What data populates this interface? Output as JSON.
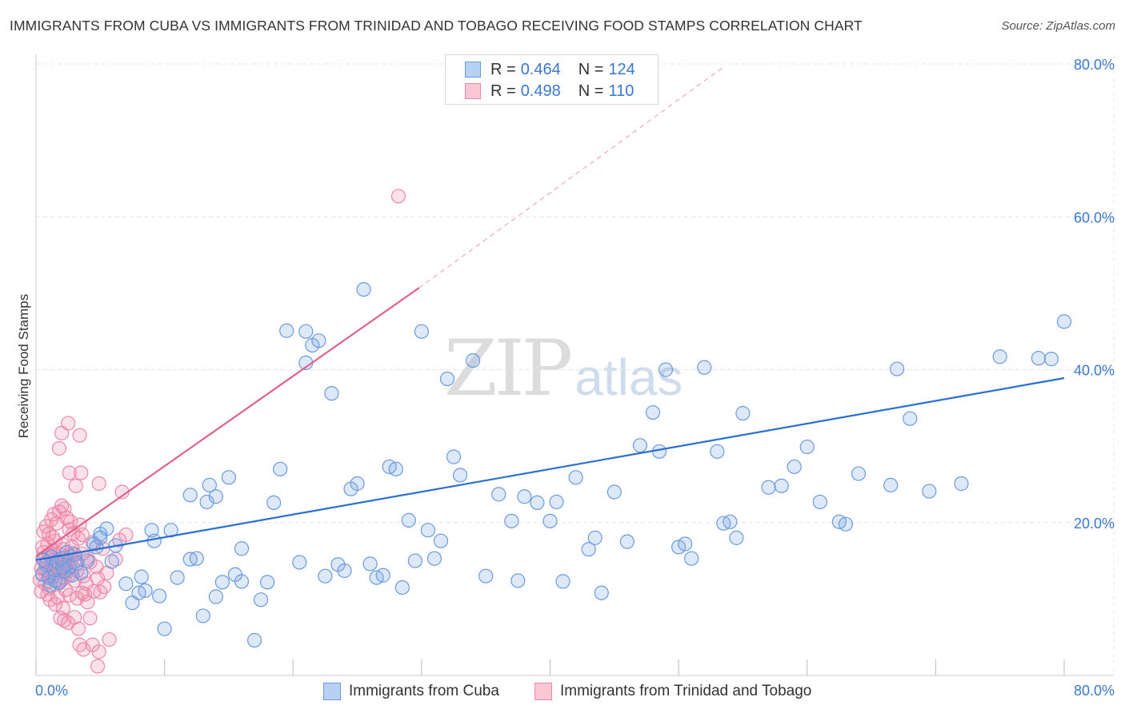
{
  "title": "IMMIGRANTS FROM CUBA VS IMMIGRANTS FROM TRINIDAD AND TOBAGO RECEIVING FOOD STAMPS CORRELATION CHART",
  "source": "Source: ZipAtlas.com",
  "watermark": {
    "zip": "ZIP",
    "atlas": "atlas"
  },
  "legend": {
    "rows": [
      {
        "r_label": "R =",
        "r_value": "0.464",
        "n_label": "N =",
        "n_value": "124"
      },
      {
        "r_label": "R =",
        "r_value": "0.498",
        "n_label": "N =",
        "n_value": "110"
      }
    ]
  },
  "bottom_legend": [
    "Immigrants from Cuba",
    "Immigrants from Trinidad and Tobago"
  ],
  "colors": {
    "cuba_fill": "rgba(120,165,230,0.25)",
    "cuba_stroke": "#6a9be0",
    "cuba_line": "#2a6fcf",
    "tt_fill": "rgba(240,140,170,0.25)",
    "tt_stroke": "#ee88a8",
    "tt_line": "#e0628a",
    "tick_text": "#3a78d0"
  },
  "chart_data": {
    "type": "scatter",
    "title": "IMMIGRANTS FROM CUBA VS IMMIGRANTS FROM TRINIDAD AND TOBAGO RECEIVING FOOD STAMPS CORRELATION CHART",
    "xlabel": "",
    "ylabel": "Receiving Food Stamps",
    "xlim": [
      0,
      80
    ],
    "ylim": [
      0,
      80
    ],
    "x_tick_labels": [
      "0.0%",
      "80.0%"
    ],
    "y_tick_labels": [
      "20.0%",
      "40.0%",
      "60.0%",
      "80.0%"
    ],
    "y_ticks": [
      20,
      40,
      60,
      80
    ],
    "grid": true,
    "series": [
      {
        "name": "Immigrants from Cuba",
        "R": 0.464,
        "N": 124,
        "trend": {
          "x": [
            0,
            80
          ],
          "y": [
            15.1,
            38.9
          ],
          "style": "solid"
        },
        "points": [
          [
            0.5,
            13.2
          ],
          [
            0.8,
            14.5
          ],
          [
            1.0,
            12.8
          ],
          [
            1.2,
            15.5
          ],
          [
            1.4,
            13.8
          ],
          [
            1.6,
            14.9
          ],
          [
            1.8,
            12.1
          ],
          [
            2.0,
            15.3
          ],
          [
            2.2,
            13.6
          ],
          [
            2.4,
            16.1
          ],
          [
            2.6,
            14.2
          ],
          [
            2.8,
            13.1
          ],
          [
            3.0,
            15.8
          ],
          [
            3.2,
            14.7
          ],
          [
            1.1,
            11.8
          ],
          [
            0.6,
            15.1
          ],
          [
            1.5,
            12.4
          ],
          [
            2.1,
            14.1
          ],
          [
            3.5,
            13.4
          ],
          [
            4.0,
            15.0
          ],
          [
            4.5,
            17.2
          ],
          [
            4.7,
            16.8
          ],
          [
            5.0,
            18.5
          ],
          [
            5.5,
            19.2
          ],
          [
            5.0,
            18.0
          ],
          [
            5.9,
            14.9
          ],
          [
            6.2,
            17.0
          ],
          [
            7.0,
            12.0
          ],
          [
            7.5,
            9.5
          ],
          [
            8.0,
            10.8
          ],
          [
            8.2,
            12.9
          ],
          [
            8.5,
            11.1
          ],
          [
            9.0,
            19.0
          ],
          [
            9.2,
            17.6
          ],
          [
            9.6,
            10.4
          ],
          [
            10.0,
            6.1
          ],
          [
            10.5,
            19.0
          ],
          [
            11.0,
            12.8
          ],
          [
            12.0,
            23.6
          ],
          [
            12.0,
            15.2
          ],
          [
            12.5,
            15.3
          ],
          [
            13.0,
            7.8
          ],
          [
            13.3,
            22.7
          ],
          [
            13.5,
            24.9
          ],
          [
            14.0,
            23.4
          ],
          [
            14.0,
            10.3
          ],
          [
            14.5,
            12.2
          ],
          [
            15.0,
            25.9
          ],
          [
            15.5,
            13.2
          ],
          [
            16.0,
            16.6
          ],
          [
            16.0,
            12.3
          ],
          [
            17.0,
            4.6
          ],
          [
            17.5,
            9.9
          ],
          [
            18.0,
            12.2
          ],
          [
            18.5,
            22.6
          ],
          [
            19.0,
            27.0
          ],
          [
            19.5,
            45.1
          ],
          [
            21.0,
            45.0
          ],
          [
            21.5,
            43.2
          ],
          [
            22.0,
            43.8
          ],
          [
            20.5,
            14.8
          ],
          [
            21.0,
            40.9
          ],
          [
            22.5,
            13.0
          ],
          [
            23.0,
            36.9
          ],
          [
            23.5,
            14.5
          ],
          [
            24.0,
            13.7
          ],
          [
            24.5,
            24.4
          ],
          [
            25.0,
            25.1
          ],
          [
            25.5,
            50.5
          ],
          [
            26.0,
            14.6
          ],
          [
            26.5,
            12.8
          ],
          [
            27.0,
            13.1
          ],
          [
            27.5,
            27.3
          ],
          [
            28.0,
            27.0
          ],
          [
            28.5,
            11.5
          ],
          [
            29.0,
            20.3
          ],
          [
            29.5,
            15.0
          ],
          [
            30.0,
            45.0
          ],
          [
            30.5,
            19.0
          ],
          [
            31.0,
            15.3
          ],
          [
            31.5,
            17.6
          ],
          [
            32.0,
            38.8
          ],
          [
            32.5,
            28.6
          ],
          [
            33.0,
            26.2
          ],
          [
            34.0,
            41.2
          ],
          [
            35.0,
            13.0
          ],
          [
            36.0,
            23.7
          ],
          [
            37.0,
            20.2
          ],
          [
            37.5,
            12.4
          ],
          [
            38.0,
            23.4
          ],
          [
            39.0,
            22.6
          ],
          [
            40.0,
            20.2
          ],
          [
            40.5,
            22.7
          ],
          [
            41.0,
            12.3
          ],
          [
            42.0,
            25.9
          ],
          [
            43.0,
            16.5
          ],
          [
            43.5,
            18.0
          ],
          [
            44.0,
            10.8
          ],
          [
            45.0,
            24.0
          ],
          [
            46.0,
            17.5
          ],
          [
            47.0,
            30.1
          ],
          [
            48.0,
            34.4
          ],
          [
            48.5,
            29.3
          ],
          [
            49.0,
            40.0
          ],
          [
            50.0,
            16.8
          ],
          [
            50.5,
            17.2
          ],
          [
            51.0,
            15.3
          ],
          [
            52.0,
            40.3
          ],
          [
            53.0,
            29.3
          ],
          [
            53.5,
            19.9
          ],
          [
            54.0,
            20.1
          ],
          [
            54.5,
            18.0
          ],
          [
            55.0,
            34.3
          ],
          [
            57.0,
            24.6
          ],
          [
            58.0,
            24.8
          ],
          [
            59.0,
            27.3
          ],
          [
            60.0,
            29.9
          ],
          [
            61.0,
            22.7
          ],
          [
            62.5,
            20.1
          ],
          [
            63.0,
            19.8
          ],
          [
            64.0,
            26.4
          ],
          [
            66.5,
            24.9
          ],
          [
            67.0,
            40.1
          ],
          [
            68.0,
            33.6
          ],
          [
            69.5,
            24.1
          ],
          [
            72.0,
            25.1
          ],
          [
            75.0,
            41.7
          ],
          [
            78.0,
            41.5
          ],
          [
            79.0,
            41.4
          ],
          [
            80.0,
            46.3
          ]
        ]
      },
      {
        "name": "Immigrants from Trinidad and Tobago",
        "R": 0.498,
        "N": 110,
        "trend": {
          "x": [
            0,
            29.8
          ],
          "y": [
            15.6,
            50.7
          ],
          "style": "solid"
        },
        "trend_extension": {
          "x": [
            29.8,
            53.5
          ],
          "y": [
            50.7,
            79.6
          ],
          "style": "dashed"
        },
        "points": [
          [
            0.3,
            12.5
          ],
          [
            0.4,
            14.0
          ],
          [
            0.5,
            15.2
          ],
          [
            0.5,
            13.3
          ],
          [
            0.6,
            16.1
          ],
          [
            0.7,
            12.0
          ],
          [
            0.8,
            14.8
          ],
          [
            0.9,
            13.6
          ],
          [
            1.0,
            15.7
          ],
          [
            1.0,
            11.4
          ],
          [
            1.1,
            13.0
          ],
          [
            1.2,
            14.4
          ],
          [
            1.3,
            16.3
          ],
          [
            1.3,
            12.9
          ],
          [
            1.4,
            15.1
          ],
          [
            1.5,
            13.8
          ],
          [
            1.6,
            14.6
          ],
          [
            1.7,
            12.2
          ],
          [
            1.8,
            15.9
          ],
          [
            1.9,
            13.5
          ],
          [
            2.0,
            14.1
          ],
          [
            2.1,
            16.5
          ],
          [
            2.2,
            12.7
          ],
          [
            2.3,
            15.3
          ],
          [
            2.4,
            13.9
          ],
          [
            2.5,
            14.9
          ],
          [
            2.6,
            13.2
          ],
          [
            2.7,
            15.6
          ],
          [
            2.8,
            14.3
          ],
          [
            2.9,
            16.0
          ],
          [
            3.0,
            12.4
          ],
          [
            3.1,
            15.0
          ],
          [
            3.2,
            13.7
          ],
          [
            0.6,
            18.8
          ],
          [
            0.8,
            19.5
          ],
          [
            1.0,
            18.5
          ],
          [
            1.2,
            20.4
          ],
          [
            1.4,
            21.1
          ],
          [
            1.6,
            19.9
          ],
          [
            1.8,
            21.4
          ],
          [
            2.0,
            22.2
          ],
          [
            2.2,
            21.8
          ],
          [
            2.4,
            20.6
          ],
          [
            2.6,
            19.1
          ],
          [
            0.4,
            11.0
          ],
          [
            0.9,
            10.6
          ],
          [
            1.1,
            9.9
          ],
          [
            1.5,
            9.3
          ],
          [
            1.7,
            10.2
          ],
          [
            2.1,
            8.8
          ],
          [
            2.3,
            11.2
          ],
          [
            2.6,
            10.5
          ],
          [
            3.2,
            10.1
          ],
          [
            3.6,
            10.8
          ],
          [
            4.0,
            9.6
          ],
          [
            1.9,
            7.5
          ],
          [
            2.2,
            7.2
          ],
          [
            2.5,
            6.9
          ],
          [
            3.0,
            7.6
          ],
          [
            3.3,
            6.1
          ],
          [
            4.2,
            7.5
          ],
          [
            3.4,
            4.0
          ],
          [
            3.7,
            3.4
          ],
          [
            4.4,
            4.0
          ],
          [
            4.9,
            3.1
          ],
          [
            5.7,
            4.7
          ],
          [
            4.8,
            1.2
          ],
          [
            1.8,
            29.7
          ],
          [
            2.5,
            33.0
          ],
          [
            3.4,
            31.4
          ],
          [
            2.0,
            31.7
          ],
          [
            2.6,
            26.5
          ],
          [
            3.1,
            24.8
          ],
          [
            3.5,
            26.5
          ],
          [
            4.9,
            25.1
          ],
          [
            6.7,
            24.0
          ],
          [
            3.6,
            18.4
          ],
          [
            4.4,
            17.4
          ],
          [
            5.2,
            16.6
          ],
          [
            6.5,
            17.7
          ],
          [
            7.0,
            18.4
          ],
          [
            3.7,
            13.0
          ],
          [
            4.2,
            14.8
          ],
          [
            4.8,
            12.7
          ],
          [
            5.3,
            11.6
          ],
          [
            3.8,
            10.6
          ],
          [
            4.5,
            11.0
          ],
          [
            5.0,
            10.9
          ],
          [
            2.7,
            20.1
          ],
          [
            3.4,
            19.7
          ],
          [
            1.5,
            17.6
          ],
          [
            2.1,
            17.1
          ],
          [
            2.8,
            16.8
          ],
          [
            3.3,
            17.9
          ],
          [
            1.2,
            15.8
          ],
          [
            0.7,
            13.9
          ],
          [
            1.9,
            12.3
          ],
          [
            2.4,
            13.6
          ],
          [
            4.0,
            15.3
          ],
          [
            4.7,
            14.2
          ],
          [
            0.9,
            17.2
          ],
          [
            1.3,
            18.1
          ],
          [
            3.9,
            12.0
          ],
          [
            5.5,
            13.4
          ],
          [
            6.2,
            15.2
          ],
          [
            2.0,
            14.7
          ],
          [
            2.9,
            18.6
          ],
          [
            3.6,
            15.9
          ],
          [
            28.2,
            62.7
          ],
          [
            0.5,
            16.8
          ]
        ]
      }
    ]
  }
}
